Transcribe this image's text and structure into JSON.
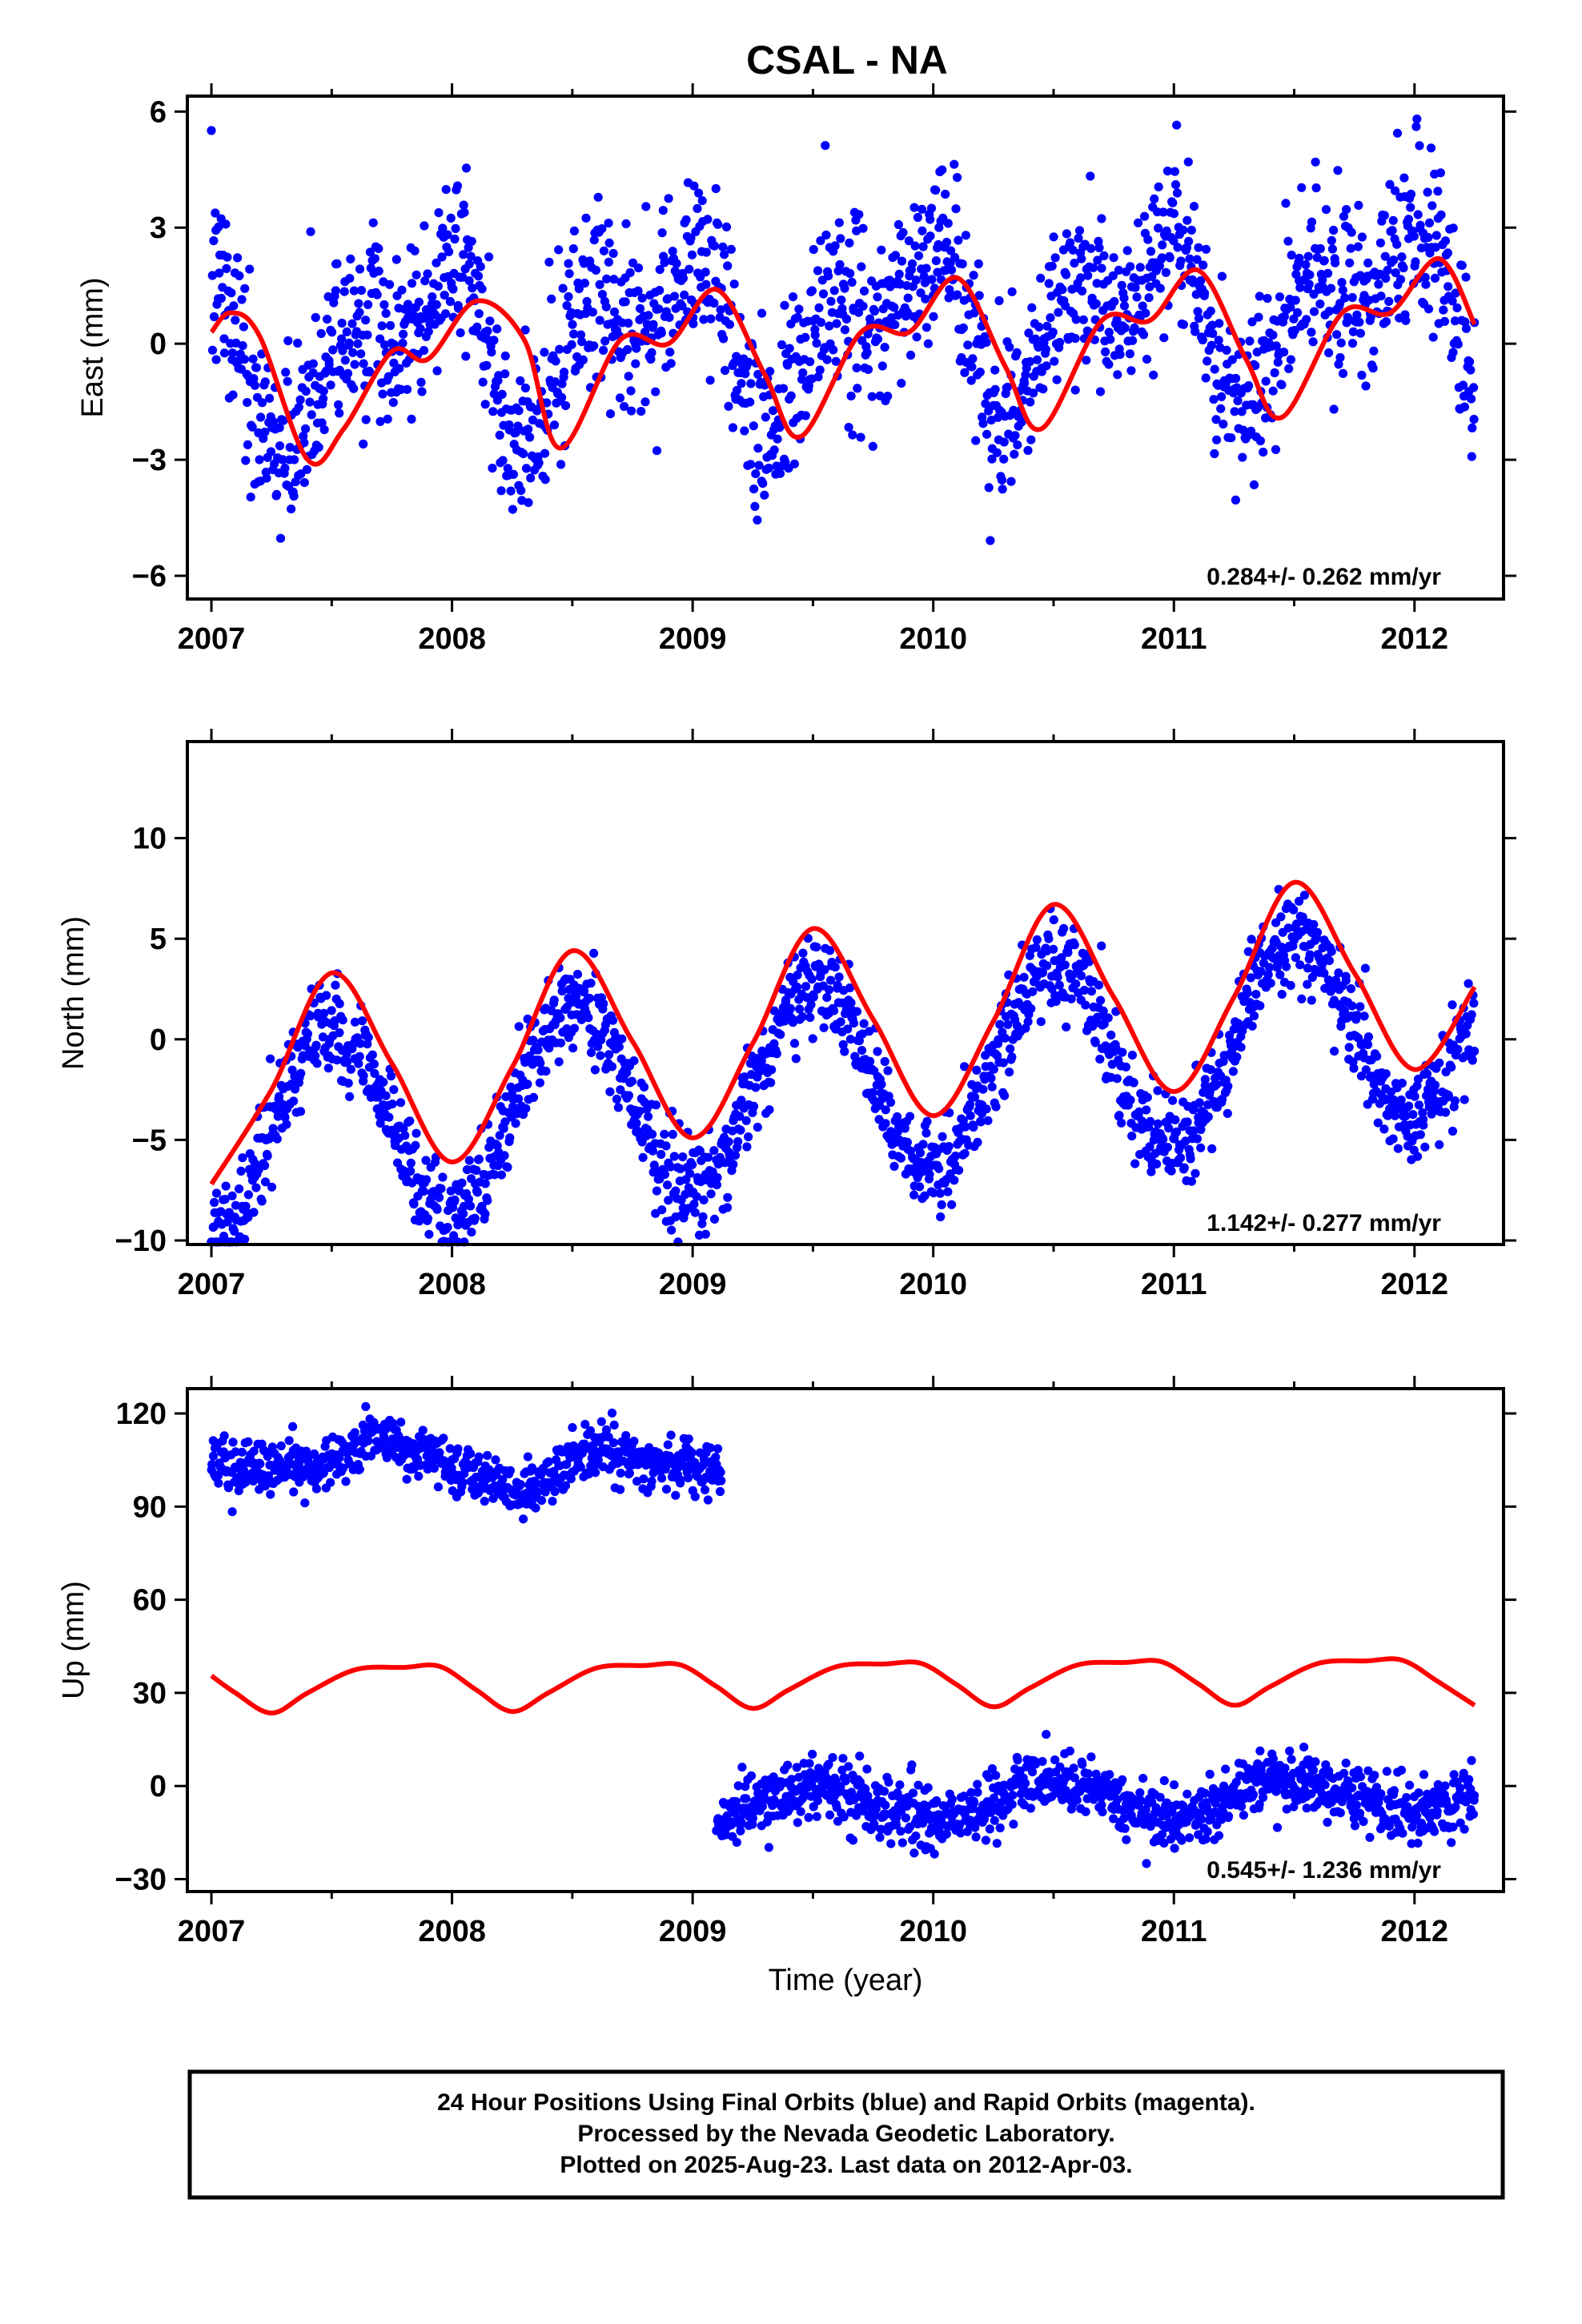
{
  "title": "CSAL - NA",
  "caption": {
    "line1": "24 Hour Positions Using Final Orbits (blue) and Rapid Orbits (magenta).",
    "line2": "Processed by the Nevada Geodetic Laboratory.",
    "line3": "Plotted on 2025-Aug-23. Last data on 2012-Apr-03."
  },
  "colors": {
    "points": "#0000ff",
    "model": "#ff0000",
    "axes": "#000000"
  },
  "chart_data": [
    {
      "type": "scatter",
      "ylabel": "East (mm)",
      "xlabel": "",
      "xlim": [
        2006.9,
        2012.37
      ],
      "ylim": [
        -6.6,
        6.4
      ],
      "xticks": [
        2007,
        2008,
        2009,
        2010,
        2011,
        2012
      ],
      "yticks": [
        -6,
        -3,
        0,
        3,
        6
      ],
      "ytick_labels": [
        "−6",
        "−3",
        "0",
        "3",
        "6"
      ],
      "rate_label": "0.284+/- 0.262 mm/yr",
      "grid": false,
      "series": [
        {
          "role": "daily positions",
          "color": "#0000ff",
          "kind": "points",
          "x_start": 2007.0,
          "x_end": 2012.25,
          "approx_model": {
            "offset": -0.3,
            "rate": 0.284,
            "ann_sin": -1.2,
            "ann_cos": 0.9,
            "semi_sin": 0.6,
            "semi_cos": 1.1
          },
          "scatter_sd": 1.2
        },
        {
          "role": "model fit",
          "color": "#ff0000",
          "kind": "line",
          "x": [
            2007.0,
            2007.08,
            2007.2,
            2007.4,
            2007.55,
            2007.75,
            2007.9,
            2008.1,
            2008.3,
            2008.45,
            2008.7,
            2008.9,
            2009.1,
            2009.3,
            2009.45,
            2009.7,
            2009.9,
            2010.1,
            2010.3,
            2010.45,
            2010.7,
            2010.9,
            2011.1,
            2011.3,
            2011.45,
            2011.7,
            2011.9,
            2012.1,
            2012.25
          ],
          "y": [
            0.3,
            0.8,
            0.2,
            -3.0,
            -2.2,
            -0.2,
            -0.4,
            1.1,
            0.1,
            -2.7,
            0.1,
            0.0,
            1.4,
            -0.8,
            -2.4,
            0.3,
            0.3,
            1.7,
            -0.6,
            -2.2,
            0.6,
            0.6,
            1.9,
            -0.4,
            -1.9,
            0.8,
            0.8,
            2.2,
            0.5
          ]
        }
      ]
    },
    {
      "type": "scatter",
      "ylabel": "North (mm)",
      "xlabel": "",
      "xlim": [
        2006.9,
        2012.37
      ],
      "ylim": [
        -10.2,
        14.8
      ],
      "xticks": [
        2007,
        2008,
        2009,
        2010,
        2011,
        2012
      ],
      "yticks": [
        -10,
        -5,
        0,
        5,
        10
      ],
      "ytick_labels": [
        "−10",
        "−5",
        "0",
        "5",
        "10"
      ],
      "rate_label": "1.142+/- 0.277 mm/yr",
      "grid": false,
      "series": [
        {
          "role": "daily positions",
          "color": "#0000ff",
          "kind": "points",
          "x_start": 2007.0,
          "x_end": 2012.25,
          "approx_model": {
            "offset": -4.9,
            "rate": 1.142,
            "ann_sin": 0.0,
            "ann_cos": -4.7,
            "semi_sin": 0.0,
            "semi_cos": 0.0
          },
          "scatter_sd": 1.2
        },
        {
          "role": "model fit",
          "color": "#ff0000",
          "kind": "line",
          "x": [
            2007.0,
            2007.25,
            2007.5,
            2007.75,
            2008.0,
            2008.25,
            2008.5,
            2008.75,
            2009.0,
            2009.25,
            2009.5,
            2009.75,
            2010.0,
            2010.25,
            2010.5,
            2010.75,
            2011.0,
            2011.25,
            2011.5,
            2011.75,
            2012.0,
            2012.25
          ],
          "y": [
            -7.2,
            -2.5,
            3.3,
            -1.2,
            -6.1,
            -1.4,
            4.4,
            -0.1,
            -4.9,
            -0.2,
            5.5,
            1.0,
            -3.8,
            0.9,
            6.7,
            2.1,
            -2.6,
            2.1,
            7.8,
            3.3,
            -1.5,
            2.6
          ]
        }
      ]
    },
    {
      "type": "scatter",
      "ylabel": "Up (mm)",
      "xlabel": "Time (year)",
      "xlim": [
        2006.9,
        2012.37
      ],
      "ylim": [
        -34,
        128
      ],
      "xticks": [
        2007,
        2008,
        2009,
        2010,
        2011,
        2012
      ],
      "yticks": [
        -30,
        0,
        30,
        60,
        90,
        120
      ],
      "ytick_labels": [
        "−30",
        "0",
        "30",
        "60",
        "90",
        "120"
      ],
      "rate_label": "0.545+/- 1.236 mm/yr",
      "grid": false,
      "series": [
        {
          "role": "daily positions before offset",
          "color": "#0000ff",
          "kind": "points",
          "x_start": 2007.0,
          "x_end": 2009.12,
          "approx_model": {
            "offset": 103,
            "rate": 0.0,
            "ann_sin": 0.0,
            "ann_cos": 0.0,
            "semi_sin": 0.0,
            "semi_cos": 0.0,
            "bumps": [
              [
                2007.7,
                9
              ],
              [
                2008.3,
                -8
              ],
              [
                2008.6,
                6
              ]
            ]
          },
          "scatter_sd": 4.5
        },
        {
          "role": "daily positions after offset",
          "color": "#0000ff",
          "kind": "points",
          "x_start": 2009.1,
          "x_end": 2012.25,
          "approx_model": {
            "offset": -10,
            "rate": 1.5,
            "ann_sin": 0.0,
            "ann_cos": -6.0,
            "semi_sin": 0.0,
            "semi_cos": 0.0
          },
          "scatter_sd": 5.0
        },
        {
          "role": "model fit",
          "color": "#ff0000",
          "kind": "line",
          "x": [
            2007.0,
            2007.1,
            2007.25,
            2007.4,
            2007.6,
            2007.8,
            2007.95,
            2008.1,
            2008.25,
            2008.4,
            2008.6,
            2008.8,
            2008.95,
            2009.1,
            2009.25,
            2009.4,
            2009.6,
            2009.8,
            2009.95,
            2010.1,
            2010.25,
            2010.4,
            2010.6,
            2010.8,
            2010.95,
            2011.1,
            2011.25,
            2011.4,
            2011.6,
            2011.8,
            2011.95,
            2012.1,
            2012.25
          ],
          "y": [
            35.5,
            30,
            23.5,
            30,
            37.5,
            38.2,
            38.5,
            31,
            24,
            30,
            38,
            38.8,
            39,
            32,
            25,
            31,
            38.5,
            39.3,
            39.5,
            32.5,
            25.5,
            31.5,
            39,
            39.8,
            40,
            33,
            26,
            32,
            39.5,
            40.3,
            40.5,
            33.5,
            26
          ]
        }
      ]
    }
  ]
}
